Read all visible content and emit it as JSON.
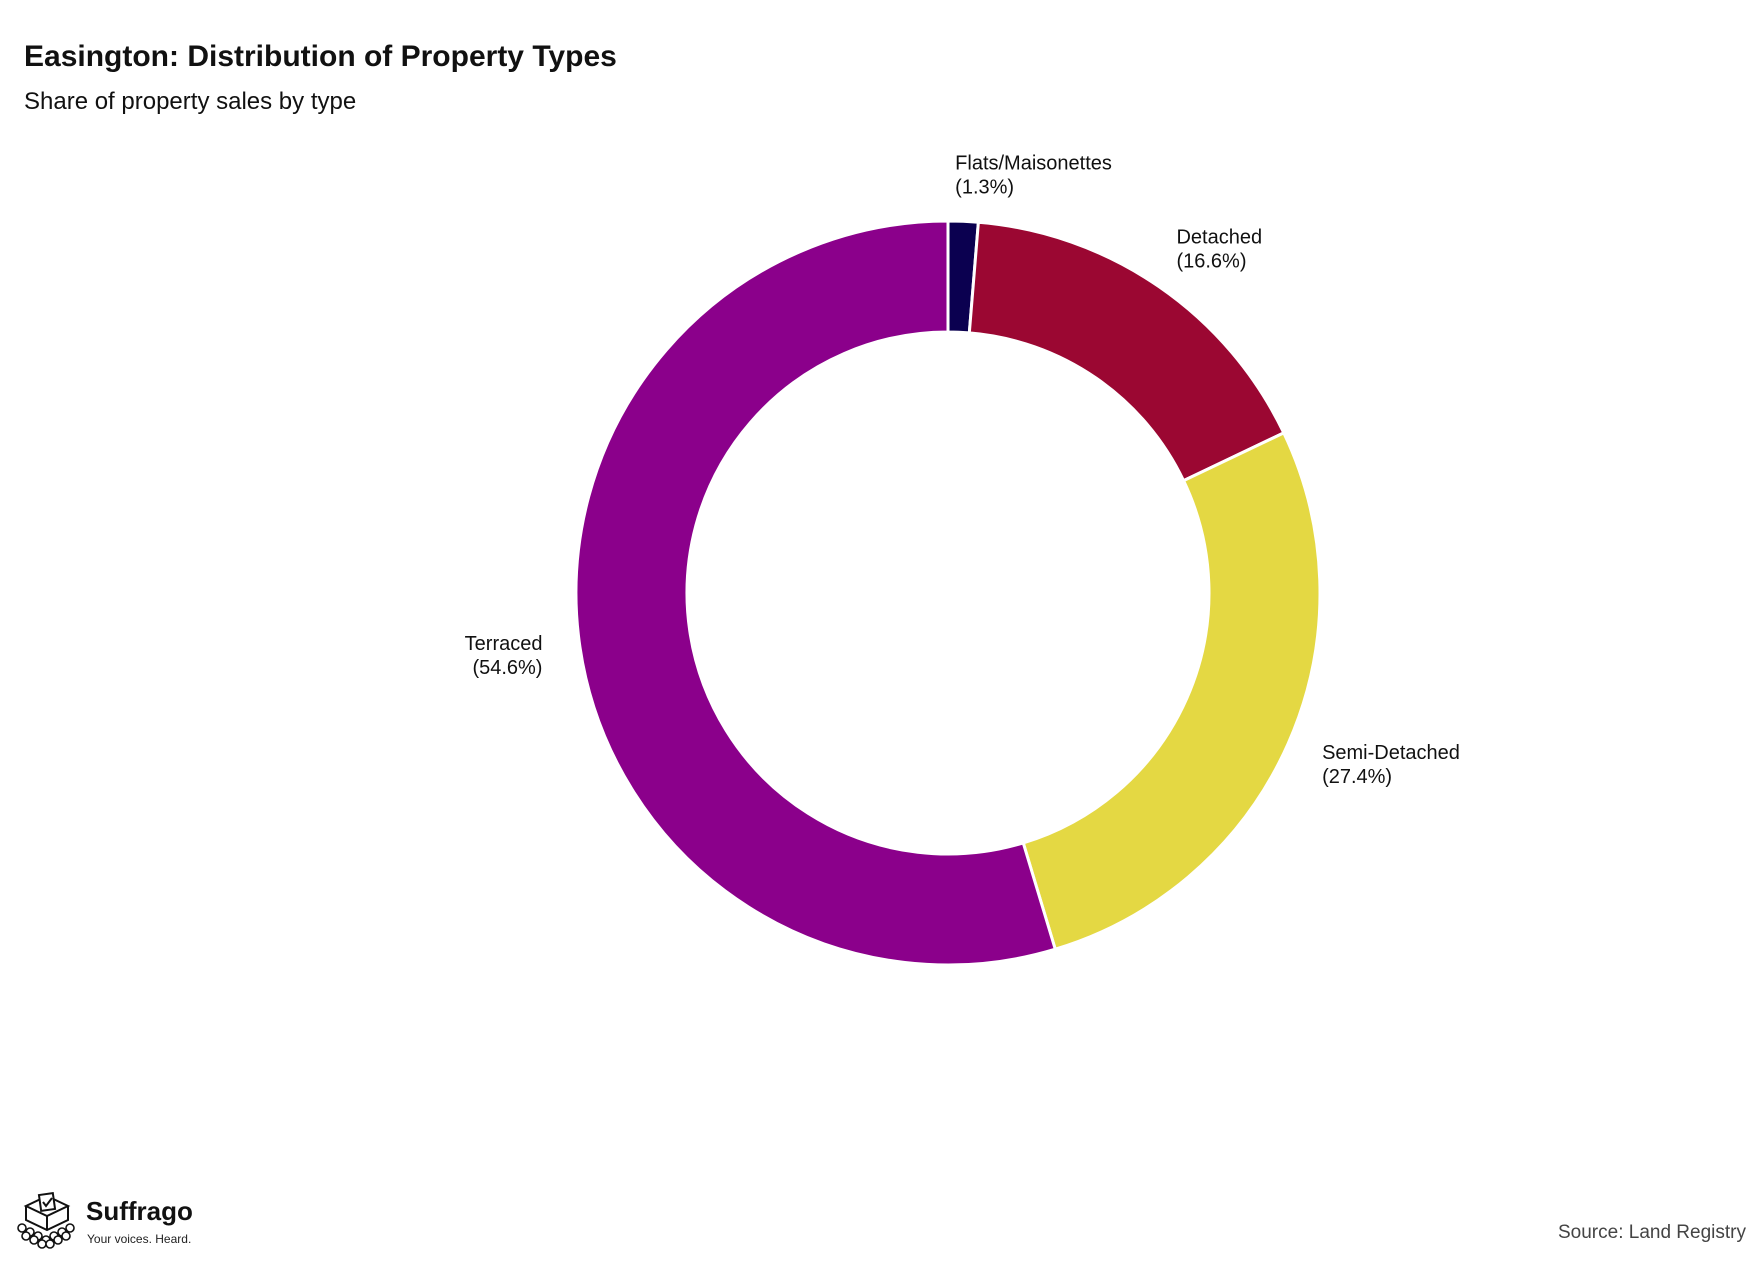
{
  "header": {
    "title": "Easington: Distribution of Property Types",
    "subtitle": "Share of property sales by type"
  },
  "chart_data": {
    "type": "pie",
    "variant": "donut",
    "start_angle_deg": 0,
    "direction": "clockwise",
    "slices": [
      {
        "name": "Flats/Maisonettes",
        "value": 1.3,
        "label": "(1.3%)",
        "color": "#0b0050"
      },
      {
        "name": "Detached",
        "value": 16.6,
        "label": "(16.6%)",
        "color": "#9b0732"
      },
      {
        "name": "Semi-Detached",
        "value": 27.4,
        "label": "(27.4%)",
        "color": "#e4d843"
      },
      {
        "name": "Terraced",
        "value": 54.6,
        "label": "(54.6%)",
        "color": "#8b008b"
      }
    ]
  },
  "footer": {
    "brand_name": "Suffrago",
    "brand_tagline": "Your voices. Heard.",
    "logo_icon": "ballot-box-icon",
    "source": "Source: Land Registry"
  }
}
